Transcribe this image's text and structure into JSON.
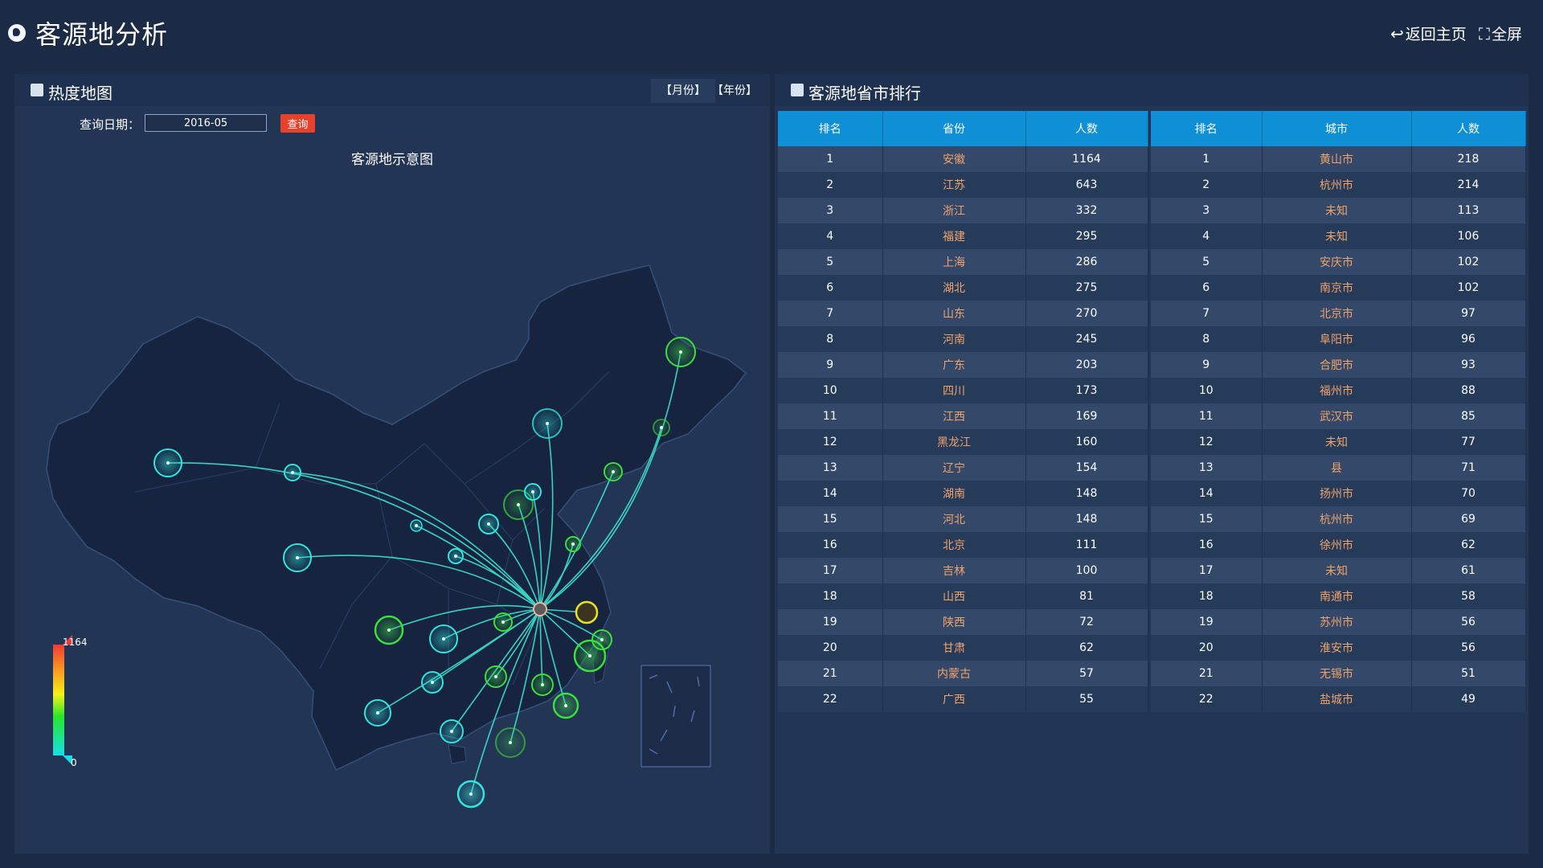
{
  "header": {
    "title": "客源地分析",
    "back_label": "返回主页",
    "fullscreen_label": "全屏"
  },
  "left_panel": {
    "title": "热度地图",
    "tab_month": "【月份】",
    "tab_year": "【年份】",
    "query_label": "查询日期：",
    "query_date": "2016-05",
    "query_button": "查询",
    "map_title": "客源地示意图",
    "legend_max": "1164",
    "legend_min": "0"
  },
  "right_panel": {
    "title": "客源地省市排行",
    "province_table": {
      "headers": [
        "排名",
        "省份",
        "人数"
      ],
      "rows": [
        [
          "1",
          "安徽",
          "1164"
        ],
        [
          "2",
          "江苏",
          "643"
        ],
        [
          "3",
          "浙江",
          "332"
        ],
        [
          "4",
          "福建",
          "295"
        ],
        [
          "5",
          "上海",
          "286"
        ],
        [
          "6",
          "湖北",
          "275"
        ],
        [
          "7",
          "山东",
          "270"
        ],
        [
          "8",
          "河南",
          "245"
        ],
        [
          "9",
          "广东",
          "203"
        ],
        [
          "10",
          "四川",
          "173"
        ],
        [
          "11",
          "江西",
          "169"
        ],
        [
          "12",
          "黑龙江",
          "160"
        ],
        [
          "13",
          "辽宁",
          "154"
        ],
        [
          "14",
          "湖南",
          "148"
        ],
        [
          "15",
          "河北",
          "148"
        ],
        [
          "16",
          "北京",
          "111"
        ],
        [
          "17",
          "吉林",
          "100"
        ],
        [
          "18",
          "山西",
          "81"
        ],
        [
          "19",
          "陕西",
          "72"
        ],
        [
          "20",
          "甘肃",
          "62"
        ],
        [
          "21",
          "内蒙古",
          "57"
        ],
        [
          "22",
          "广西",
          "55"
        ]
      ]
    },
    "city_table": {
      "headers": [
        "排名",
        "城市",
        "人数"
      ],
      "rows": [
        [
          "1",
          "黄山市",
          "218"
        ],
        [
          "2",
          "杭州市",
          "214"
        ],
        [
          "3",
          "未知",
          "113"
        ],
        [
          "4",
          "未知",
          "106"
        ],
        [
          "5",
          "安庆市",
          "102"
        ],
        [
          "6",
          "南京市",
          "102"
        ],
        [
          "7",
          "北京市",
          "97"
        ],
        [
          "8",
          "阜阳市",
          "96"
        ],
        [
          "9",
          "合肥市",
          "93"
        ],
        [
          "10",
          "福州市",
          "88"
        ],
        [
          "11",
          "武汉市",
          "85"
        ],
        [
          "12",
          "未知",
          "77"
        ],
        [
          "13",
          "县",
          "71"
        ],
        [
          "14",
          "扬州市",
          "70"
        ],
        [
          "15",
          "杭州市",
          "69"
        ],
        [
          "16",
          "徐州市",
          "62"
        ],
        [
          "17",
          "未知",
          "61"
        ],
        [
          "18",
          "南通市",
          "58"
        ],
        [
          "19",
          "苏州市",
          "56"
        ],
        [
          "20",
          "淮安市",
          "56"
        ],
        [
          "21",
          "无锡市",
          "51"
        ],
        [
          "22",
          "盐城市",
          "49"
        ]
      ]
    }
  },
  "colors": {
    "background": "#1b2a45",
    "panel": "#233554",
    "table_header": "#0f8fd6",
    "query_button": "#e8412b",
    "name_text": "#f0a36b",
    "flow_line": "#3ff0d8"
  }
}
